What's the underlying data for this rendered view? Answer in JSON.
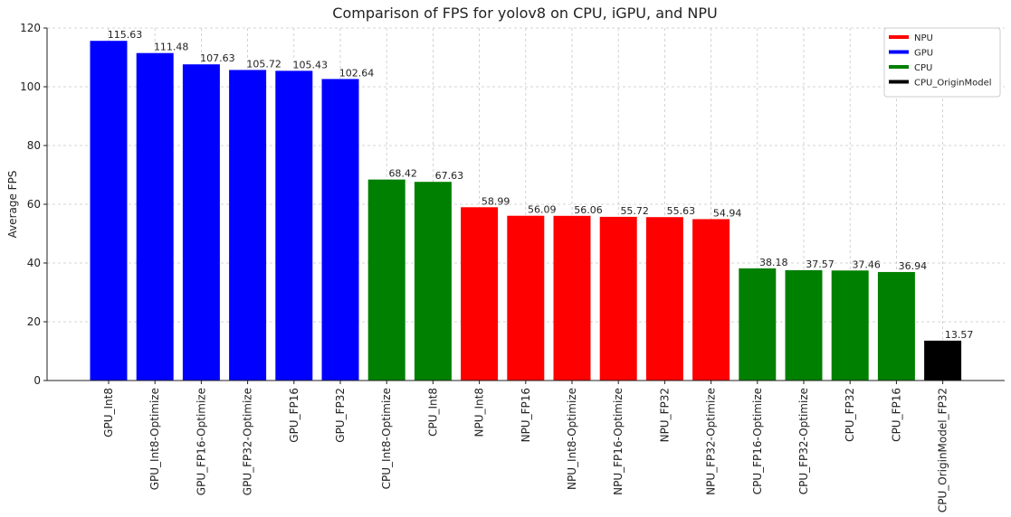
{
  "chart_data": {
    "type": "bar",
    "title": "Comparison of FPS for yolov8 on CPU, iGPU, and NPU",
    "xlabel": "",
    "ylabel": "Average FPS",
    "ylim": [
      0,
      120
    ],
    "yticks": [
      0,
      20,
      40,
      60,
      80,
      100,
      120
    ],
    "grid": true,
    "legend_position": "top-right",
    "categories": [
      "GPU_Int8",
      "GPU_Int8-Optimize",
      "GPU_FP16-Optimize",
      "GPU_FP32-Optimize",
      "GPU_FP16",
      "GPU_FP32",
      "CPU_Int8-Optimize",
      "CPU_Int8",
      "NPU_Int8",
      "NPU_FP16",
      "NPU_Int8-Optimize",
      "NPU_FP16-Optimize",
      "NPU_FP32",
      "NPU_FP32-Optimize",
      "CPU_FP16-Optimize",
      "CPU_FP32-Optimize",
      "CPU_FP32",
      "CPU_FP16",
      "CPU_OriginModel_FP32"
    ],
    "values": [
      115.63,
      111.48,
      107.63,
      105.72,
      105.43,
      102.64,
      68.42,
      67.63,
      58.99,
      56.09,
      56.06,
      55.72,
      55.63,
      54.94,
      38.18,
      37.57,
      37.46,
      36.94,
      13.57
    ],
    "value_labels": [
      "115.63",
      "111.48",
      "107.63",
      "105.72",
      "105.43",
      "102.64",
      "68.42",
      "67.63",
      "58.99",
      "56.09",
      "56.06",
      "55.72",
      "55.63",
      "54.94",
      "38.18",
      "37.57",
      "37.46",
      "36.94",
      "13.57"
    ],
    "groups": [
      "GPU",
      "GPU",
      "GPU",
      "GPU",
      "GPU",
      "GPU",
      "CPU",
      "CPU",
      "NPU",
      "NPU",
      "NPU",
      "NPU",
      "NPU",
      "NPU",
      "CPU",
      "CPU",
      "CPU",
      "CPU",
      "CPU_OriginModel"
    ],
    "legend": [
      {
        "name": "NPU",
        "color": "#ff0000"
      },
      {
        "name": "GPU",
        "color": "#0000ff"
      },
      {
        "name": "CPU",
        "color": "#008000"
      },
      {
        "name": "CPU_OriginModel",
        "color": "#000000"
      }
    ]
  }
}
